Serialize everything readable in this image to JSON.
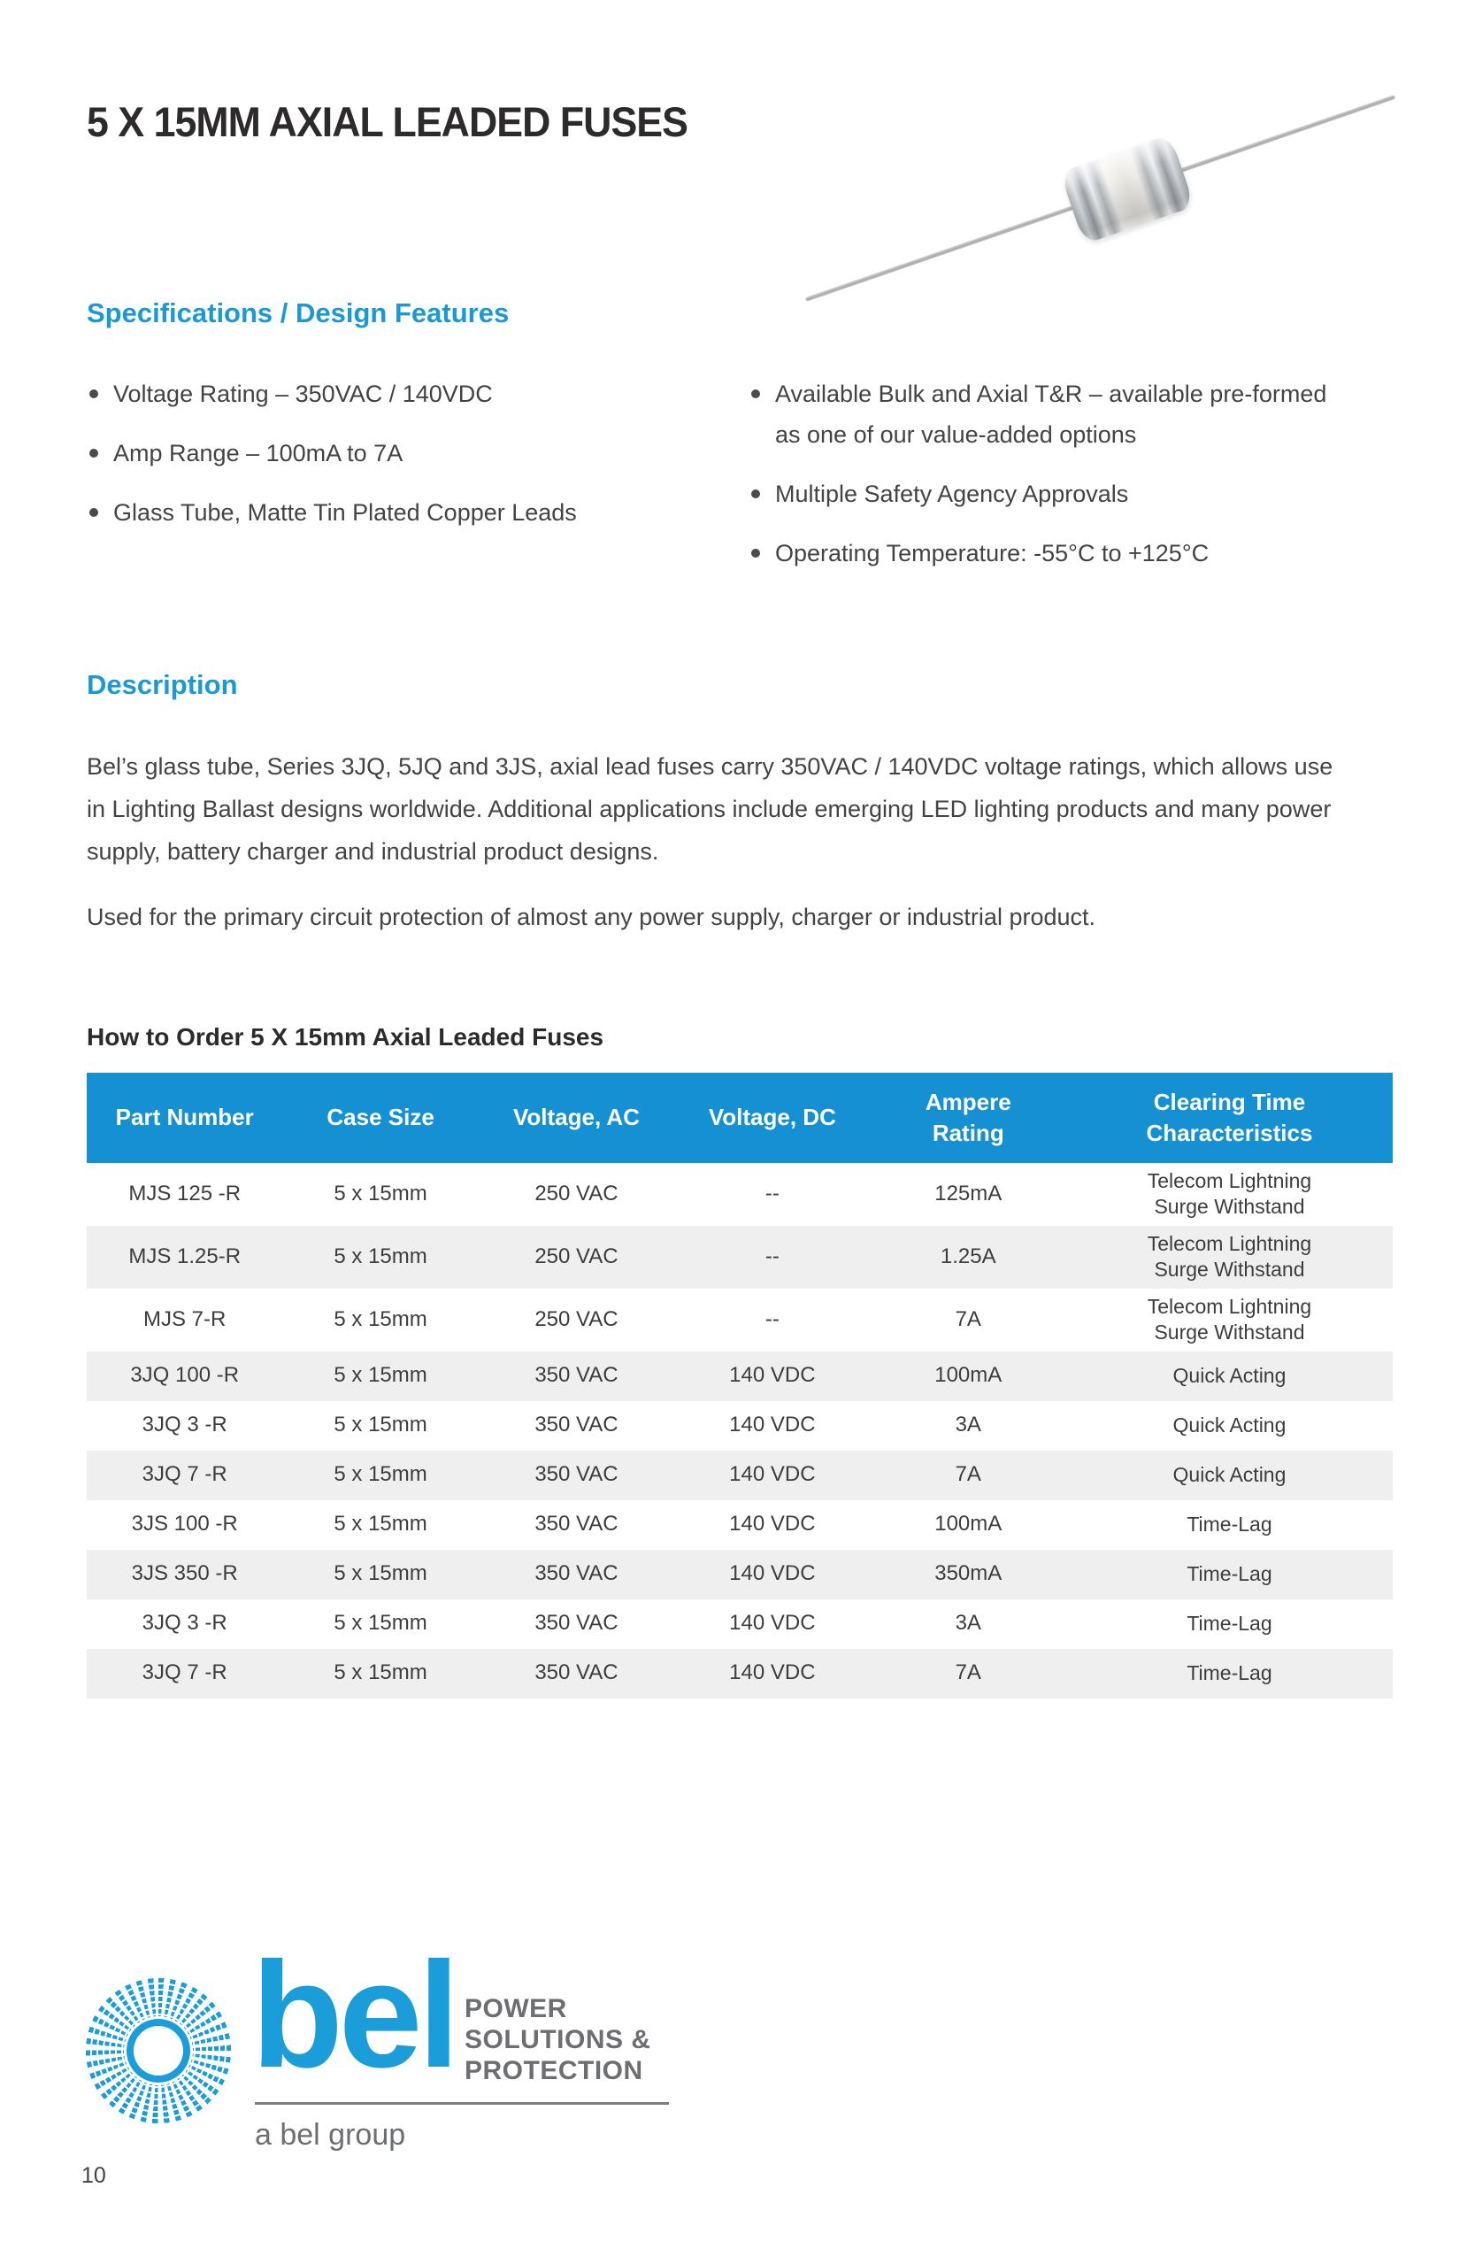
{
  "page": {
    "title": "5 X 15MM AXIAL LEADED FUSES",
    "page_number": "10"
  },
  "specs": {
    "heading": "Specifications / Design Features",
    "left_bullets": [
      "Voltage Rating – 350VAC / 140VDC",
      "Amp Range – 100mA to 7A",
      "Glass Tube, Matte Tin Plated Copper Leads"
    ],
    "right_bullets": [
      "Available Bulk and Axial T&R – available pre-formed\nas one of our value-added options",
      "Multiple Safety Agency Approvals",
      "Operating Temperature: -55°C to +125°C"
    ]
  },
  "description": {
    "heading": "Description",
    "paragraphs": [
      "Bel’s glass tube, Series 3JQ, 5JQ and 3JS, axial lead fuses carry 350VAC / 140VDC voltage ratings, which allows use\nin Lighting Ballast designs worldwide. Additional applications include emerging LED lighting products and many power\nsupply, battery charger and industrial product designs.",
      "Used for the primary circuit protection of almost any power supply, charger or industrial product."
    ]
  },
  "order_table": {
    "heading": "How to Order  5 X 15mm Axial Leaded Fuses",
    "columns": [
      "Part Number",
      "Case Size",
      "Voltage, AC",
      "Voltage, DC",
      "Ampere\nRating",
      "Clearing Time\nCharacteristics"
    ],
    "rows": [
      [
        "MJS 125 -R",
        "5 x 15mm",
        "250 VAC",
        "--",
        "125mA",
        "Telecom Lightning\nSurge Withstand"
      ],
      [
        "MJS 1.25-R",
        "5 x 15mm",
        "250 VAC",
        "--",
        "1.25A",
        "Telecom Lightning\nSurge Withstand"
      ],
      [
        "MJS 7-R",
        "5 x 15mm",
        "250 VAC",
        "--",
        "7A",
        "Telecom Lightning\nSurge Withstand"
      ],
      [
        "3JQ 100 -R",
        "5 x 15mm",
        "350 VAC",
        "140 VDC",
        "100mA",
        "Quick Acting"
      ],
      [
        "3JQ 3 -R",
        "5 x 15mm",
        "350 VAC",
        "140 VDC",
        "3A",
        "Quick Acting"
      ],
      [
        "3JQ 7 -R",
        "5 x 15mm",
        "350 VAC",
        "140 VDC",
        "7A",
        "Quick Acting"
      ],
      [
        "3JS 100 -R",
        "5 x 15mm",
        "350 VAC",
        "140 VDC",
        "100mA",
        "Time-Lag"
      ],
      [
        "3JS 350 -R",
        "5 x 15mm",
        "350 VAC",
        "140 VDC",
        "350mA",
        "Time-Lag"
      ],
      [
        "3JQ 3 -R",
        "5 x 15mm",
        "350 VAC",
        "140 VDC",
        "3A",
        "Time-Lag"
      ],
      [
        "3JQ 7 -R",
        "5 x 15mm",
        "350 VAC",
        "140 VDC",
        "7A",
        "Time-Lag"
      ]
    ]
  },
  "footer": {
    "logo_text": "bel",
    "logo_tagline": "POWER\nSOLUTIONS &\nPROTECTION",
    "logo_sub": "a bel group"
  },
  "colors": {
    "heading_blue": "#1b99d5",
    "table_header_blue": "#1590d2",
    "row_alt_gray": "#efefef",
    "body_text": "#434345",
    "title_text": "#2d2a2b",
    "bel_blue": "#1b9dd9",
    "logo_gray": "#6d6e71"
  }
}
